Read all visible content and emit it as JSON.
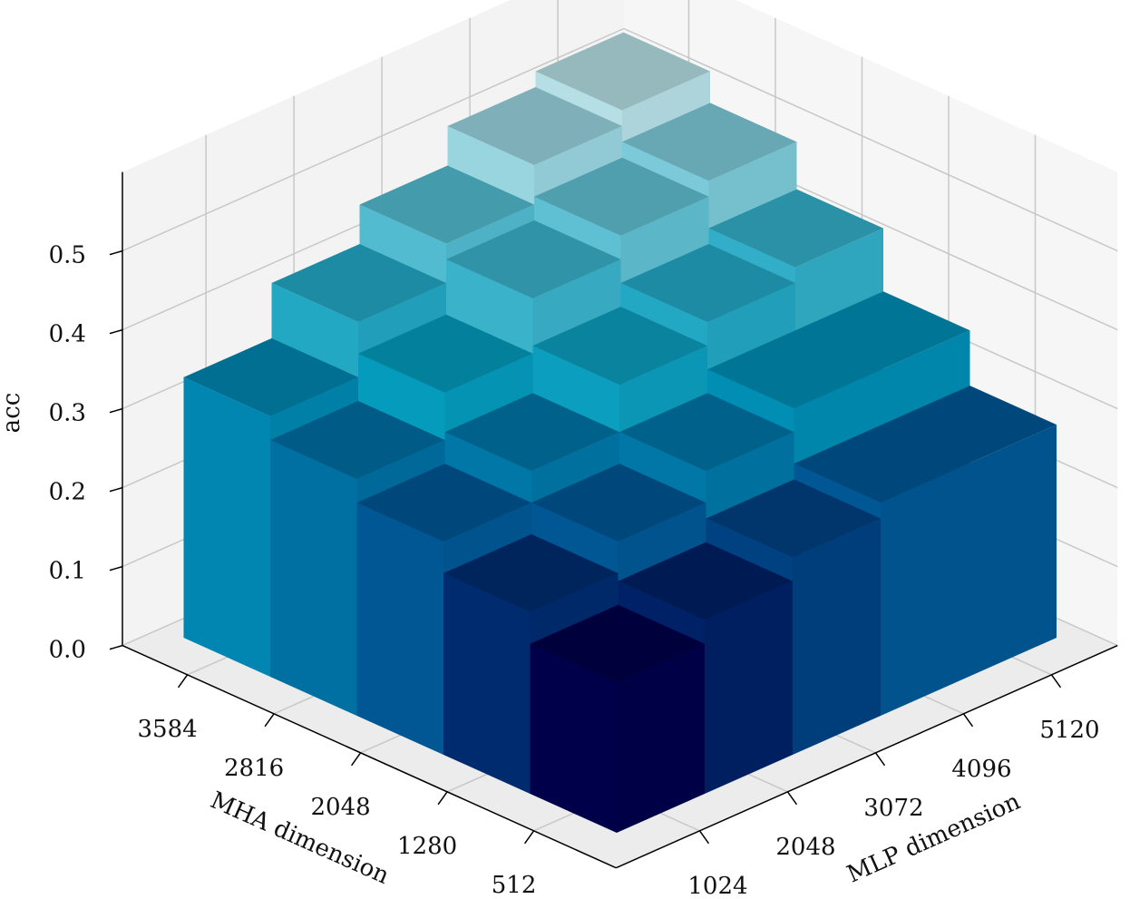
{
  "chart_data": {
    "type": "bar3d",
    "xlabel": "MHA dimension",
    "ylabel": "MLP dimension",
    "zlabel": "acc",
    "x_categories": [
      "512",
      "1280",
      "2048",
      "2816",
      "3584"
    ],
    "y_categories": [
      "1024",
      "2048",
      "3072",
      "4096",
      "5120"
    ],
    "values": [
      [
        0.19,
        0.22,
        0.25,
        0.27,
        0.27
      ],
      [
        0.23,
        0.27,
        0.31,
        0.34,
        0.34
      ],
      [
        0.27,
        0.31,
        0.37,
        0.4,
        0.42
      ],
      [
        0.3,
        0.36,
        0.43,
        0.46,
        0.48
      ],
      [
        0.33,
        0.4,
        0.45,
        0.5,
        0.52
      ]
    ],
    "zlim": [
      0,
      0.6
    ],
    "zticks": [
      {
        "value": 0,
        "label": "0.0"
      },
      0.1,
      0.2,
      0.3,
      0.4,
      0.5
    ],
    "colormap": [
      "#00004a",
      "#005a96",
      "#0099bb",
      "#40b4cc",
      "#b5dfe5"
    ],
    "grid": true
  }
}
